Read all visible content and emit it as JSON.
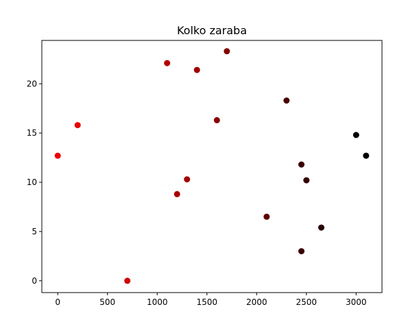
{
  "chart_data": {
    "type": "scatter",
    "title": "Kolko zaraba",
    "xlabel": "",
    "ylabel": "",
    "xlim": [
      -160,
      3260
    ],
    "ylim": [
      -1.2,
      24.4
    ],
    "xticks": [
      0,
      500,
      1000,
      1500,
      2000,
      2500,
      3000
    ],
    "yticks": [
      0,
      5,
      10,
      15,
      20
    ],
    "grid": false,
    "points": [
      {
        "x": 0,
        "y": 12.7,
        "color": "#ee0000"
      },
      {
        "x": 200,
        "y": 15.8,
        "color": "#e80000"
      },
      {
        "x": 700,
        "y": 0,
        "color": "#d10000"
      },
      {
        "x": 1100,
        "y": 22.1,
        "color": "#b00000"
      },
      {
        "x": 1200,
        "y": 8.8,
        "color": "#a80000"
      },
      {
        "x": 1300,
        "y": 10.3,
        "color": "#a30000"
      },
      {
        "x": 1400,
        "y": 21.4,
        "color": "#9c0000"
      },
      {
        "x": 1600,
        "y": 16.3,
        "color": "#8a0000"
      },
      {
        "x": 1700,
        "y": 23.3,
        "color": "#820000"
      },
      {
        "x": 2100,
        "y": 6.5,
        "color": "#5e0000"
      },
      {
        "x": 2300,
        "y": 18.3,
        "color": "#4a0000"
      },
      {
        "x": 2450,
        "y": 3.0,
        "color": "#3b0000"
      },
      {
        "x": 2450,
        "y": 11.8,
        "color": "#3b0000"
      },
      {
        "x": 2500,
        "y": 10.2,
        "color": "#370000"
      },
      {
        "x": 2650,
        "y": 5.4,
        "color": "#280000"
      },
      {
        "x": 3000,
        "y": 14.8,
        "color": "#060000"
      },
      {
        "x": 3100,
        "y": 12.7,
        "color": "#000000"
      }
    ]
  }
}
